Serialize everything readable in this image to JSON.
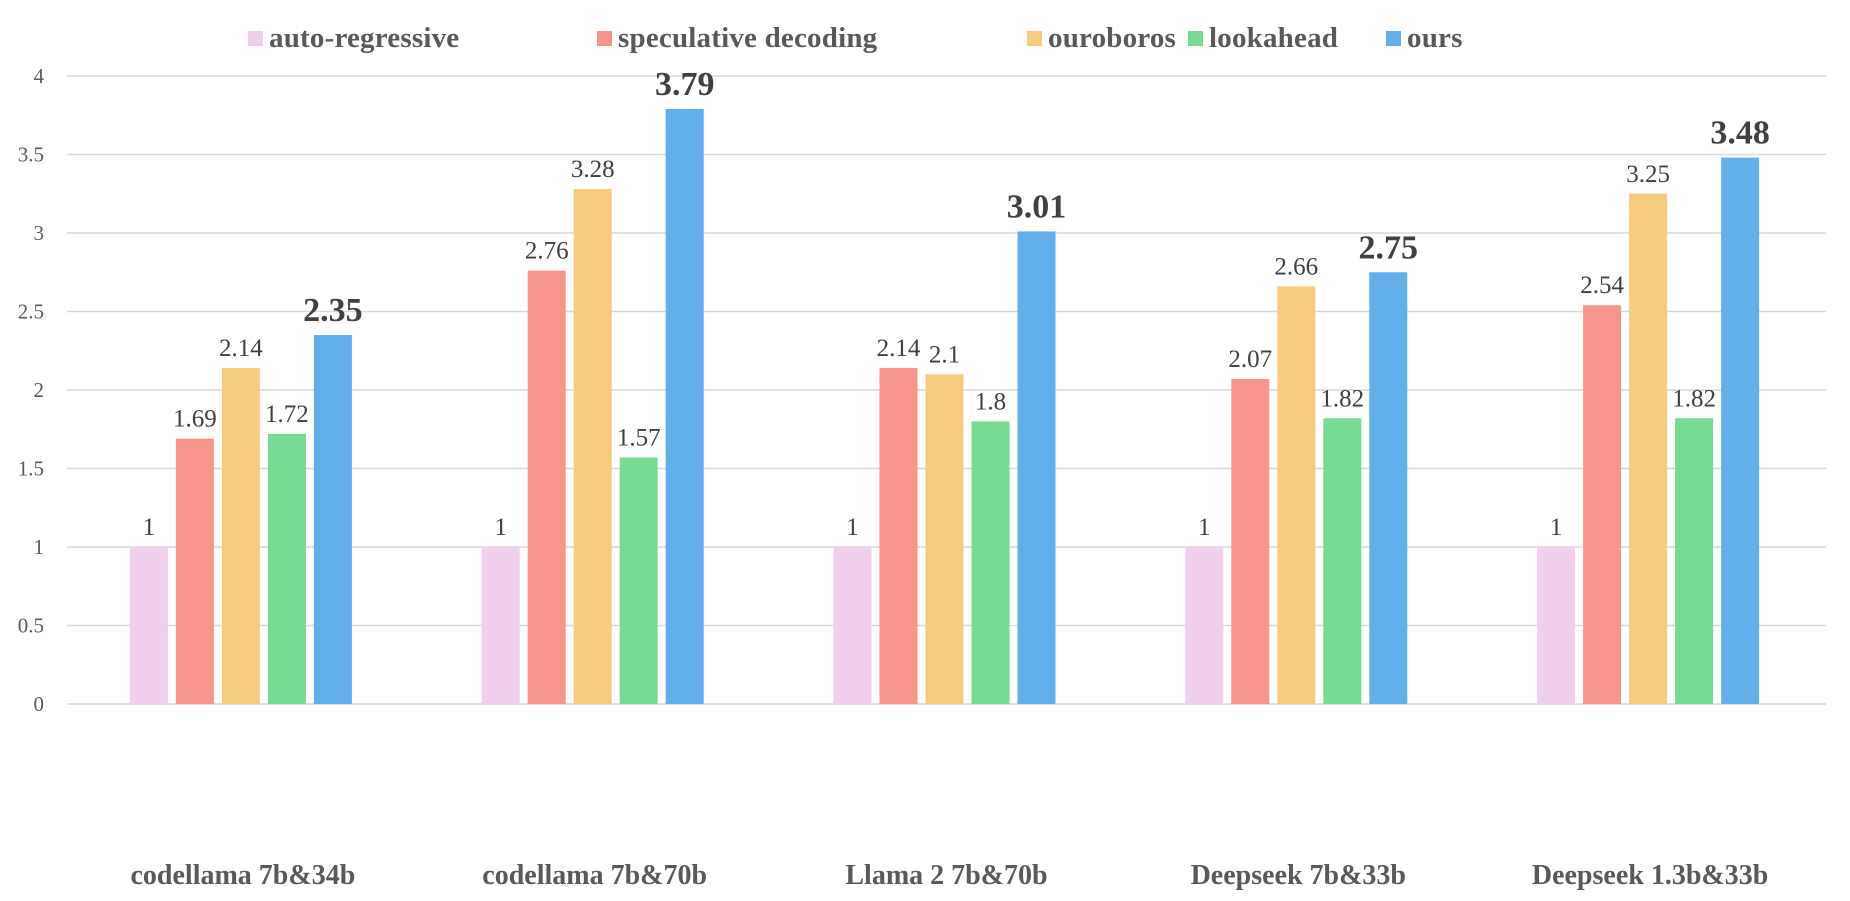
{
  "chart_data": {
    "type": "bar",
    "title": "",
    "xlabel": "",
    "ylabel": "",
    "ylim": [
      0,
      4
    ],
    "yticks": [
      0,
      0.5,
      1,
      1.5,
      2,
      2.5,
      3,
      3.5,
      4
    ],
    "ytick_labels": [
      "0",
      "0.5",
      "1",
      "1.5",
      "2",
      "2.5",
      "3",
      "3.5",
      "4"
    ],
    "grid": true,
    "legend_position": "top",
    "categories": [
      "codellama 7b&34b",
      "codellama 7b&70b",
      "Llama 2 7b&70b",
      "Deepseek 7b&33b",
      "Deepseek 1.3b&33b"
    ],
    "series": [
      {
        "name": "auto-regressive",
        "color": "#f0cfec",
        "bold_labels": false,
        "values": [
          1,
          1,
          1,
          1,
          1
        ],
        "labels": [
          "1",
          "1",
          "1",
          "1",
          "1"
        ]
      },
      {
        "name": "speculative decoding",
        "color": "#f8958a",
        "bold_labels": false,
        "values": [
          1.69,
          2.76,
          2.14,
          2.07,
          2.54
        ],
        "labels": [
          "1.69",
          "2.76",
          "2.14",
          "2.07",
          "2.54"
        ]
      },
      {
        "name": "ouroboros",
        "color": "#f7cb7e",
        "bold_labels": false,
        "values": [
          2.14,
          3.28,
          2.1,
          2.66,
          3.25
        ],
        "labels": [
          "2.14",
          "3.28",
          "2.1",
          "2.66",
          "3.25"
        ]
      },
      {
        "name": "lookahead",
        "color": "#77db90",
        "bold_labels": false,
        "values": [
          1.72,
          1.57,
          1.8,
          1.82,
          1.82
        ],
        "labels": [
          "1.72",
          "1.57",
          "1.8",
          "1.82",
          "1.82"
        ]
      },
      {
        "name": "ours",
        "color": "#62b0eb",
        "bold_labels": true,
        "values": [
          2.35,
          3.79,
          3.01,
          2.75,
          3.48
        ],
        "labels": [
          "2.35",
          "3.79",
          "3.01",
          "2.75",
          "3.48"
        ]
      }
    ]
  }
}
